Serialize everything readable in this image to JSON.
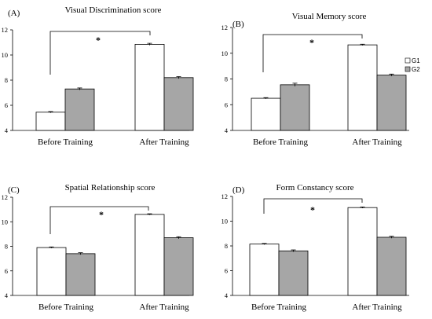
{
  "chart_data": [
    {
      "type": "bar",
      "panel_label": "(A)",
      "title": "Visual Discrimination score",
      "categories": [
        "Before Training",
        "After Training"
      ],
      "series": [
        {
          "name": "G1",
          "values": [
            5.45,
            10.85
          ],
          "errors": [
            0.05,
            0.08
          ],
          "color": "#ffffff"
        },
        {
          "name": "G2",
          "values": [
            7.3,
            8.2
          ],
          "errors": [
            0.08,
            0.08
          ],
          "color": "#a6a6a6"
        }
      ],
      "ylim": [
        4,
        12
      ],
      "yticks": [
        4,
        6,
        8,
        10,
        12
      ],
      "significance": "*"
    },
    {
      "type": "bar",
      "panel_label": "(B)",
      "title": "Visual Memory score",
      "categories": [
        "Before Training",
        "After Training"
      ],
      "series": [
        {
          "name": "G1",
          "values": [
            6.5,
            10.65
          ],
          "errors": [
            0.05,
            0.05
          ],
          "color": "#ffffff"
        },
        {
          "name": "G2",
          "values": [
            7.55,
            8.3
          ],
          "errors": [
            0.12,
            0.08
          ],
          "color": "#a6a6a6"
        }
      ],
      "ylim": [
        4,
        12
      ],
      "yticks": [
        4,
        6,
        8,
        10,
        12
      ],
      "significance": "*",
      "legend": [
        "G1",
        "G2"
      ],
      "legend_position": "right"
    },
    {
      "type": "bar",
      "panel_label": "(C)",
      "title": "Spatial Relationship score",
      "categories": [
        "Before Training",
        "After Training"
      ],
      "series": [
        {
          "name": "G1",
          "values": [
            7.9,
            10.6
          ],
          "errors": [
            0.05,
            0.05
          ],
          "color": "#ffffff"
        },
        {
          "name": "G2",
          "values": [
            7.4,
            8.7
          ],
          "errors": [
            0.08,
            0.08
          ],
          "color": "#a6a6a6"
        }
      ],
      "ylim": [
        4,
        12
      ],
      "yticks": [
        4,
        6,
        8,
        10,
        12
      ],
      "significance": "*"
    },
    {
      "type": "bar",
      "panel_label": "(D)",
      "title": "Form Constancy score",
      "categories": [
        "Before Training",
        "After Training"
      ],
      "series": [
        {
          "name": "G1",
          "values": [
            8.15,
            11.1
          ],
          "errors": [
            0.05,
            0.05
          ],
          "color": "#ffffff"
        },
        {
          "name": "G2",
          "values": [
            7.6,
            8.7
          ],
          "errors": [
            0.08,
            0.08
          ],
          "color": "#a6a6a6"
        }
      ],
      "ylim": [
        4,
        12
      ],
      "yticks": [
        4,
        6,
        8,
        10,
        12
      ],
      "significance": "*"
    }
  ]
}
